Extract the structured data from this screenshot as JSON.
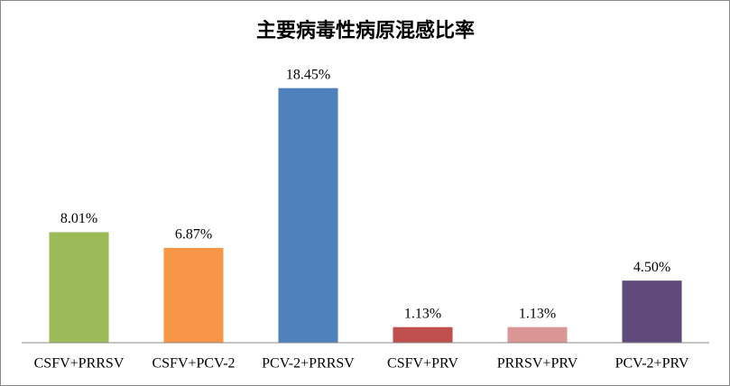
{
  "chart_data": {
    "type": "bar",
    "title": "主要病毒性病原混感比率",
    "categories": [
      "CSFV+PRRSV",
      "CSFV+PCV-2",
      "PCV-2+PRRSV",
      "CSFV+PRV",
      "PRRSV+PRV",
      "PCV-2+PRV"
    ],
    "values": [
      8.01,
      6.87,
      18.45,
      1.13,
      1.13,
      4.5
    ],
    "value_labels": [
      "8.01%",
      "6.87%",
      "18.45%",
      "1.13%",
      "1.13%",
      "4.50%"
    ],
    "colors": [
      "#9bbb59",
      "#f79646",
      "#4f81bd",
      "#c0504d",
      "#d99694",
      "#604a7b"
    ],
    "ylim": [
      0,
      20
    ]
  }
}
